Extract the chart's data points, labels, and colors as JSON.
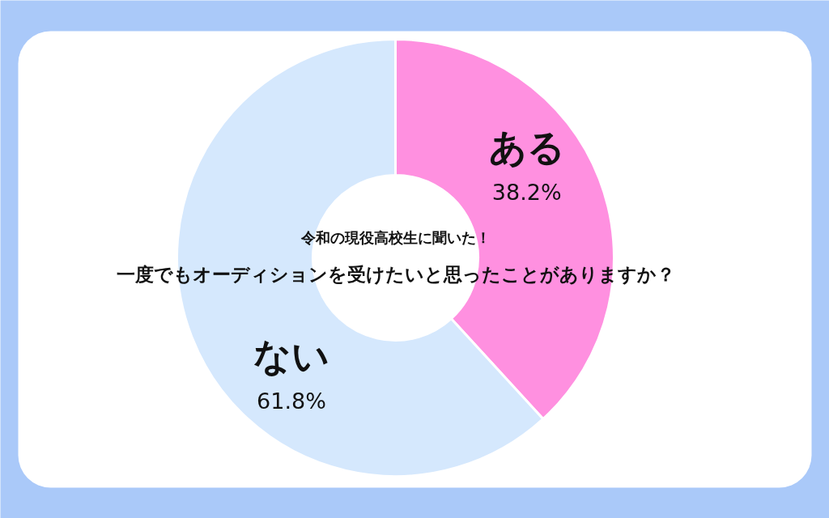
{
  "chart_data": {
    "type": "donut",
    "title": "令和の現役高校生に聞いた！",
    "subtitle": "一度でもオーディションを受けたいと思ったことがありますか？",
    "categories": [
      "ある",
      "ない"
    ],
    "values": [
      38.2,
      61.8
    ],
    "colors": [
      "#ff90e0",
      "#d5e8fd"
    ],
    "value_labels": [
      "38.2%",
      "61.8%"
    ]
  }
}
